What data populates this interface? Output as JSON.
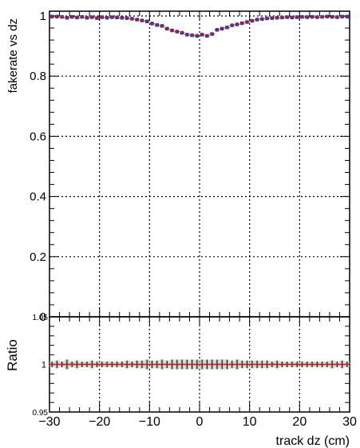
{
  "chart_data": [
    {
      "type": "scatter",
      "panel": "top",
      "title": "",
      "xlabel": "",
      "ylabel": "fakerate vs dz",
      "xlim": [
        -30,
        30
      ],
      "ylim": [
        0,
        1.02
      ],
      "grid": true,
      "x_ticks": [
        "−30",
        "−20",
        "−10",
        "0",
        "10",
        "20",
        "30"
      ],
      "y_ticks": [
        "0",
        "0.2",
        "0.4",
        "0.6",
        "0.8",
        "1"
      ],
      "colors": {
        "series_a": "#1f3aa8",
        "series_b": "#d11414"
      },
      "series": [
        {
          "x": [
            -29.5,
            -28.5,
            -27.5,
            -26.5,
            -25.5,
            -24.5,
            -23.5,
            -22.5,
            -21.5,
            -20.5,
            -19.5,
            -18.5,
            -17.5,
            -16.5,
            -15.5,
            -14.5,
            -13.5,
            -12.5,
            -11.5,
            -10.5,
            -9.5,
            -8.5,
            -7.5,
            -6.5,
            -5.5,
            -4.5,
            -3.5,
            -2.5,
            -1.5,
            -0.5,
            0.5,
            1.5,
            2.5,
            3.5,
            4.5,
            5.5,
            6.5,
            7.5,
            8.5,
            9.5,
            10.5,
            11.5,
            12.5,
            13.5,
            14.5,
            15.5,
            16.5,
            17.5,
            18.5,
            19.5,
            20.5,
            21.5,
            22.5,
            23.5,
            24.5,
            25.5,
            26.5,
            27.5,
            28.5,
            29.5
          ],
          "values": [
            0.998,
            0.998,
            0.997,
            0.994,
            0.997,
            0.995,
            0.997,
            0.994,
            0.996,
            0.993,
            0.996,
            0.994,
            0.996,
            0.995,
            0.994,
            0.993,
            0.991,
            0.988,
            0.985,
            0.982,
            0.975,
            0.97,
            0.967,
            0.958,
            0.952,
            0.948,
            0.944,
            0.938,
            0.936,
            0.934,
            0.938,
            0.934,
            0.94,
            0.954,
            0.958,
            0.962,
            0.969,
            0.972,
            0.976,
            0.98,
            0.984,
            0.988,
            0.99,
            0.992,
            0.993,
            0.994,
            0.995,
            0.996,
            0.995,
            0.996,
            0.997,
            0.996,
            0.997,
            0.996,
            0.997,
            0.998,
            0.997,
            0.996,
            0.998,
            0.998
          ]
        }
      ]
    },
    {
      "type": "scatter",
      "panel": "bottom",
      "title": "",
      "xlabel": "track dz (cm)",
      "ylabel": "Ratio",
      "xlim": [
        -30,
        30
      ],
      "ylim": [
        0.95,
        1.05
      ],
      "grid": true,
      "x_ticks": [
        "−30",
        "−20",
        "−10",
        "0",
        "10",
        "20",
        "30"
      ],
      "y_ticks": [
        "0.95",
        "1",
        "1.05"
      ],
      "reference_line": 1.0,
      "colors": {
        "points": "#000000",
        "reference": "#d11414",
        "band": "#bdbdbd"
      },
      "series": [
        {
          "x": [
            -29.5,
            -28.5,
            -27.5,
            -26.5,
            -25.5,
            -24.5,
            -23.5,
            -22.5,
            -21.5,
            -20.5,
            -19.5,
            -18.5,
            -17.5,
            -16.5,
            -15.5,
            -14.5,
            -13.5,
            -12.5,
            -11.5,
            -10.5,
            -9.5,
            -8.5,
            -7.5,
            -6.5,
            -5.5,
            -4.5,
            -3.5,
            -2.5,
            -1.5,
            -0.5,
            0.5,
            1.5,
            2.5,
            3.5,
            4.5,
            5.5,
            6.5,
            7.5,
            8.5,
            9.5,
            10.5,
            11.5,
            12.5,
            13.5,
            14.5,
            15.5,
            16.5,
            17.5,
            18.5,
            19.5,
            20.5,
            21.5,
            22.5,
            23.5,
            24.5,
            25.5,
            26.5,
            27.5,
            28.5,
            29.5
          ],
          "values": [
            1,
            1,
            1,
            1,
            1,
            1,
            1,
            1,
            1,
            1,
            1,
            1,
            1,
            1,
            1,
            1,
            1,
            1,
            1,
            1,
            1,
            1,
            1,
            1,
            1,
            1,
            1,
            1,
            1,
            1,
            1,
            1,
            1,
            1,
            1,
            1,
            1,
            1,
            1,
            1,
            1,
            1,
            1,
            1,
            1,
            1,
            1,
            1,
            1,
            1,
            1,
            1,
            1,
            1,
            1,
            1,
            1,
            1,
            1,
            1
          ],
          "errors": [
            0.003,
            0.004,
            0.003,
            0.005,
            0.003,
            0.004,
            0.003,
            0.003,
            0.004,
            0.003,
            0.003,
            0.003,
            0.003,
            0.003,
            0.003,
            0.004,
            0.003,
            0.004,
            0.004,
            0.005,
            0.004,
            0.004,
            0.005,
            0.004,
            0.005,
            0.005,
            0.005,
            0.005,
            0.005,
            0.005,
            0.005,
            0.005,
            0.005,
            0.005,
            0.005,
            0.005,
            0.004,
            0.005,
            0.004,
            0.004,
            0.004,
            0.004,
            0.004,
            0.004,
            0.003,
            0.004,
            0.003,
            0.003,
            0.003,
            0.003,
            0.003,
            0.003,
            0.003,
            0.003,
            0.003,
            0.003,
            0.004,
            0.003,
            0.004,
            0.003
          ]
        }
      ]
    }
  ]
}
